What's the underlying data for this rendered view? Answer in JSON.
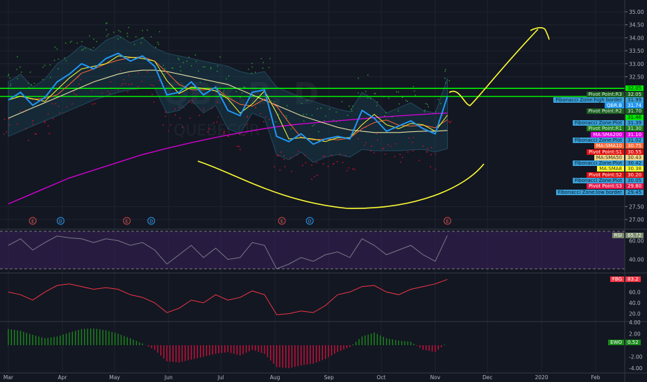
{
  "watermark": {
    "symbol": "QBR.B, D",
    "company": "QUEBECOR"
  },
  "colors": {
    "background": "#131722",
    "price": "#2196f3",
    "sma200": "#e000e0",
    "sma50": "#e8e0a0",
    "sma10": "#ff6633",
    "sma8": "#ffff33",
    "hline": "#00ff00",
    "annotation": "#ffff33",
    "rsi": "#787b86",
    "fbg": "#f23645",
    "ewo_pos": "#1b8a1b",
    "ewo_neg": "#d0103a"
  },
  "chart_data": {
    "type": "line",
    "price_axis": {
      "ylim": [
        26.8,
        35.3
      ],
      "ticks": [
        "35.00",
        "34.50",
        "34.00",
        "33.50",
        "33.00",
        "32.50",
        "27.50",
        "27.00"
      ]
    },
    "time_axis": {
      "ticks": [
        {
          "label": "Mar",
          "date": "2019-03-01"
        },
        {
          "label": "Apr",
          "date": "2019-04-01"
        },
        {
          "label": "May",
          "date": "2019-05-01"
        },
        {
          "label": "Jun",
          "date": "2019-06-01"
        },
        {
          "label": "Jul",
          "date": "2019-07-01"
        },
        {
          "label": "Aug",
          "date": "2019-08-01"
        },
        {
          "label": "Sep",
          "date": "2019-09-01"
        },
        {
          "label": "Oct",
          "date": "2019-10-01"
        },
        {
          "label": "Nov",
          "date": "2019-11-01"
        },
        {
          "label": "Dec",
          "date": "2019-12-01"
        },
        {
          "label": "2020",
          "date": "2020-01-01"
        },
        {
          "label": "Feb",
          "date": "2020-02-01"
        }
      ]
    },
    "x": [
      "2019-03-01",
      "2019-03-08",
      "2019-03-15",
      "2019-03-22",
      "2019-03-29",
      "2019-04-05",
      "2019-04-12",
      "2019-04-19",
      "2019-04-26",
      "2019-05-03",
      "2019-05-10",
      "2019-05-17",
      "2019-05-24",
      "2019-05-31",
      "2019-06-07",
      "2019-06-14",
      "2019-06-21",
      "2019-06-28",
      "2019-07-05",
      "2019-07-12",
      "2019-07-19",
      "2019-07-26",
      "2019-08-02",
      "2019-08-09",
      "2019-08-16",
      "2019-08-23",
      "2019-08-30",
      "2019-09-06",
      "2019-09-13",
      "2019-09-20",
      "2019-09-27",
      "2019-10-04",
      "2019-10-11",
      "2019-10-18",
      "2019-10-25",
      "2019-11-01",
      "2019-11-08"
    ],
    "series": [
      {
        "name": "QBR.B",
        "values": [
          31.6,
          31.9,
          31.4,
          31.7,
          32.3,
          32.6,
          33.0,
          32.8,
          33.2,
          33.4,
          33.1,
          33.3,
          32.9,
          31.8,
          31.9,
          32.3,
          31.8,
          32.1,
          31.2,
          31.0,
          31.9,
          32.0,
          30.2,
          30.0,
          30.3,
          29.9,
          30.1,
          30.2,
          30.1,
          31.2,
          30.9,
          30.4,
          30.6,
          30.8,
          30.5,
          30.3,
          31.74
        ]
      },
      {
        "name": "MA:SMA200",
        "values": [
          27.6,
          27.8,
          28.0,
          28.2,
          28.4,
          28.6,
          28.75,
          28.9,
          29.05,
          29.2,
          29.35,
          29.5,
          29.62,
          29.74,
          29.85,
          29.96,
          30.06,
          30.16,
          30.25,
          30.34,
          30.42,
          30.5,
          30.57,
          30.63,
          30.68,
          30.72,
          30.76,
          30.8,
          30.84,
          30.88,
          30.92,
          30.96,
          30.99,
          31.02,
          31.05,
          31.08,
          31.1
        ]
      },
      {
        "name": "MA:SMA50",
        "values": [
          30.9,
          31.1,
          31.3,
          31.5,
          31.7,
          31.9,
          32.1,
          32.3,
          32.45,
          32.6,
          32.7,
          32.75,
          32.75,
          32.7,
          32.6,
          32.5,
          32.4,
          32.3,
          32.2,
          32.0,
          31.8,
          31.6,
          31.4,
          31.2,
          31.0,
          30.85,
          30.7,
          30.55,
          30.45,
          30.4,
          30.35,
          30.35,
          30.35,
          30.38,
          30.4,
          30.4,
          30.43
        ]
      }
    ],
    "price_labels": [
      {
        "name": "",
        "value": "32.05",
        "bg": "#00e600",
        "fg": "#0b2a0b"
      },
      {
        "name": "Pivot Point:R3",
        "value": "32.05",
        "bg": "#1b5e20",
        "fg": "#e0f0e0"
      },
      {
        "name": "Fibonacci Zone:high border",
        "value": "31.99",
        "bg": "#3aa0d8",
        "fg": "#0b1a2a"
      },
      {
        "name": "QBR.B",
        "value": "31.74",
        "bg": "#2196f3",
        "fg": "#ffffff"
      },
      {
        "name": "Pivot Point:R2",
        "value": "31.70",
        "bg": "#1b5e20",
        "fg": "#e0f0e0"
      },
      {
        "name": "",
        "value": "31.46",
        "bg": "#00e600",
        "fg": "#0b2a0b"
      },
      {
        "name": "Fibonacci Zone:Plot",
        "value": "31.39",
        "bg": "#3aa0d8",
        "fg": "#0b1a2a"
      },
      {
        "name": "Pivot Point:R1",
        "value": "31.30",
        "bg": "#1e7e1e",
        "fg": "#e0f0e0"
      },
      {
        "name": "MA:SMA200",
        "value": "31.10",
        "bg": "#e000e0",
        "fg": "#ffffff"
      },
      {
        "name": "Fibonacci Zone:Plot",
        "value": "31.02",
        "bg": "#3aa0d8",
        "fg": "#0b1a2a"
      },
      {
        "name": "MA:SMA10",
        "value": "30.75",
        "bg": "#ff6633",
        "fg": "#ffffff"
      },
      {
        "name": "Pivot Point:S1",
        "value": "30.55",
        "bg": "#e01010",
        "fg": "#ffffff"
      },
      {
        "name": "MA:SMA50",
        "value": "30.43",
        "bg": "#f0d890",
        "fg": "#3a3010"
      },
      {
        "name": "Fibonacci Zone:Plot",
        "value": "30.42",
        "bg": "#3aa0d8",
        "fg": "#0b1a2a"
      },
      {
        "name": "MA:SMA8",
        "value": "30.38",
        "bg": "#ffff33",
        "fg": "#3a3010"
      },
      {
        "name": "Pivot Point:S2",
        "value": "30.20",
        "bg": "#e01010",
        "fg": "#ffffff"
      },
      {
        "name": "Fibonacci Zone:Plot",
        "value": "30.05",
        "bg": "#3aa0d8",
        "fg": "#0b1a2a"
      },
      {
        "name": "Pivot Point:S3",
        "value": "29.80",
        "bg": "#e8164a",
        "fg": "#ffffff"
      },
      {
        "name": "Fibonacci Zone:low border",
        "value": "29.45",
        "bg": "#3aa0d8",
        "fg": "#0b1a2a"
      }
    ],
    "horizontal_lines": [
      32.05,
      31.74
    ],
    "events": [
      {
        "type": "E",
        "date": "2019-03-15"
      },
      {
        "type": "D",
        "date": "2019-03-31"
      },
      {
        "type": "E",
        "date": "2019-05-08"
      },
      {
        "type": "D",
        "date": "2019-05-22"
      },
      {
        "type": "E",
        "date": "2019-08-05"
      },
      {
        "type": "D",
        "date": "2019-08-21"
      },
      {
        "type": "E",
        "date": "2019-11-08"
      }
    ],
    "rsi": {
      "label": "RSI",
      "last": "65.72",
      "ticks": [
        "60.00",
        "40.00"
      ],
      "bands": [
        70,
        30
      ],
      "values": [
        55,
        62,
        50,
        58,
        65,
        63,
        62,
        58,
        62,
        60,
        55,
        58,
        50,
        35,
        45,
        55,
        42,
        52,
        40,
        42,
        58,
        55,
        30,
        35,
        42,
        38,
        45,
        48,
        42,
        62,
        55,
        45,
        50,
        55,
        45,
        38,
        65.72
      ]
    },
    "fbg": {
      "label": "FBG",
      "last": "83.2",
      "ticks": [
        "60.0",
        "40.0",
        "20.0"
      ],
      "values": [
        60,
        55,
        45,
        60,
        72,
        75,
        70,
        65,
        68,
        65,
        55,
        50,
        40,
        22,
        30,
        45,
        40,
        55,
        45,
        50,
        62,
        55,
        18,
        20,
        25,
        22,
        35,
        55,
        60,
        70,
        72,
        60,
        55,
        65,
        70,
        75,
        83.2
      ]
    },
    "ewo": {
      "label": "EWO",
      "last": "0.52",
      "ticks": [
        "4.00",
        "2.00",
        "-2.00",
        "-4.00"
      ],
      "values": [
        2.8,
        2.5,
        1.8,
        1.2,
        1.5,
        2.2,
        2.8,
        2.9,
        2.6,
        2.0,
        1.2,
        0.3,
        -0.8,
        -2.8,
        -3.0,
        -2.5,
        -2.0,
        -1.5,
        -1.2,
        -1.8,
        -0.8,
        -1.5,
        -3.8,
        -4.0,
        -3.5,
        -3.2,
        -2.4,
        -1.2,
        -0.3,
        1.5,
        2.2,
        1.2,
        0.8,
        0.6,
        -0.8,
        -1.2,
        0.52
      ]
    }
  }
}
